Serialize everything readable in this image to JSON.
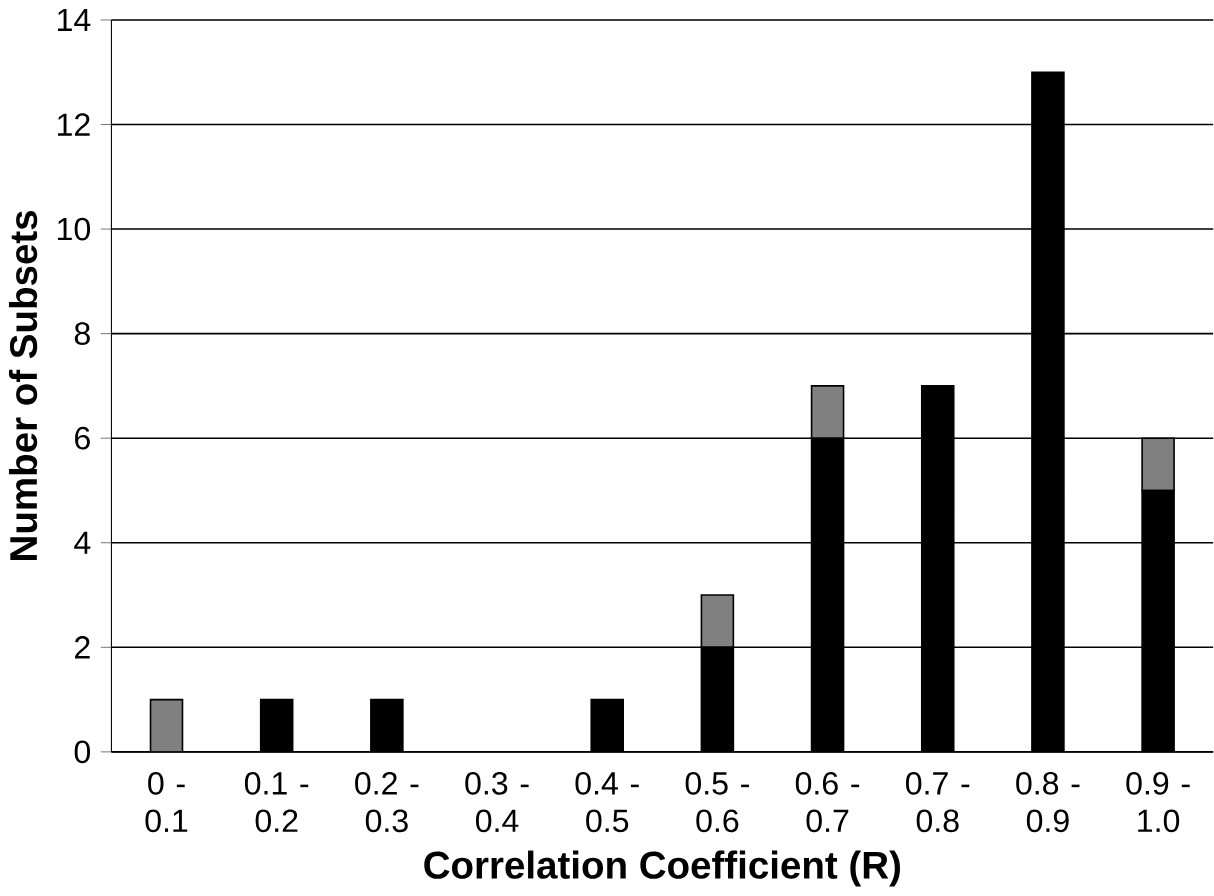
{
  "chart_data": {
    "type": "bar",
    "stacked": true,
    "xlabel": "Correlation Coefficient (R)",
    "ylabel": "Number of Subsets",
    "categories": [
      "0 - 0.1",
      "0.1 - 0.2",
      "0.2 - 0.3",
      "0.3 - 0.4",
      "0.4 - 0.5",
      "0.5 - 0.6",
      "0.6 - 0.7",
      "0.7 - 0.8",
      "0.8 - 0.9",
      "0.9 - 1.0"
    ],
    "series": [
      {
        "color": "#000000",
        "values": [
          0,
          1,
          1,
          0,
          1,
          2,
          6,
          7,
          13,
          5
        ]
      },
      {
        "color": "#808080",
        "values": [
          1,
          0,
          0,
          0,
          0,
          1,
          1,
          0,
          0,
          1
        ]
      }
    ],
    "ylim": [
      0,
      14
    ],
    "yticks": [
      0,
      2,
      4,
      6,
      8,
      10,
      12,
      14
    ],
    "grid": "y"
  }
}
